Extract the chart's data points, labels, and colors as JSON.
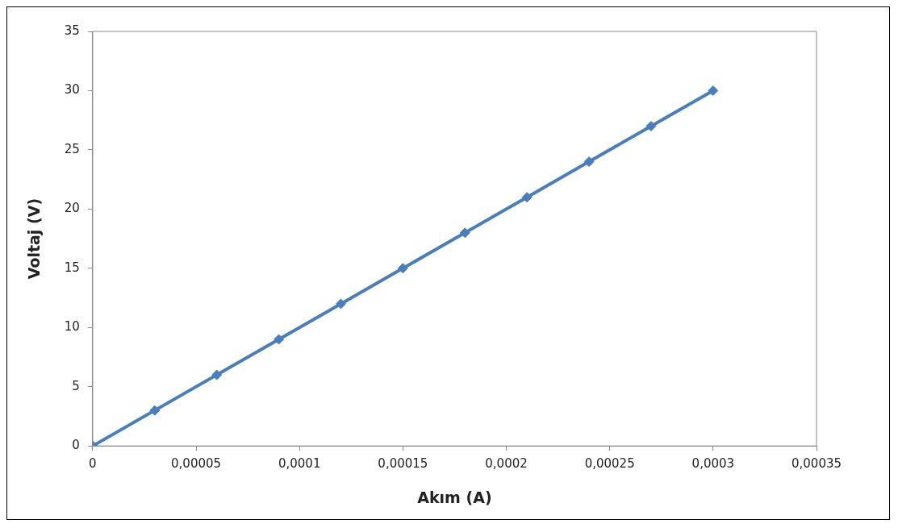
{
  "chart_data": {
    "type": "line",
    "xlabel": "Akım (A)",
    "ylabel": "Voltaj (V)",
    "x": [
      0,
      3e-05,
      6e-05,
      9e-05,
      0.00012,
      0.00015,
      0.00018,
      0.00021,
      0.00024,
      0.00027,
      0.0003
    ],
    "series": [
      {
        "color": "#4a7ebb",
        "values": [
          0,
          3,
          6,
          9,
          12,
          15,
          18,
          21,
          24,
          27,
          30
        ]
      }
    ],
    "xlim": [
      0,
      0.00035
    ],
    "xticks": [
      0,
      {
        "value": 5e-05,
        "label": "0,00005"
      },
      {
        "value": 0.0001,
        "label": "0,0001"
      },
      {
        "value": 0.00015,
        "label": "0,00015"
      },
      {
        "value": 0.0002,
        "label": "0,0002"
      },
      {
        "value": 0.00025,
        "label": "0,00025"
      },
      {
        "value": 0.0003,
        "label": "0,0003"
      },
      {
        "value": 0.00035,
        "label": "0,00035"
      }
    ],
    "ylim": [
      0,
      35
    ],
    "yticks": [
      0,
      5,
      10,
      15,
      20,
      25,
      30,
      35
    ],
    "grid": false,
    "legend": false,
    "marker": "diamond",
    "line_style": "solid"
  }
}
